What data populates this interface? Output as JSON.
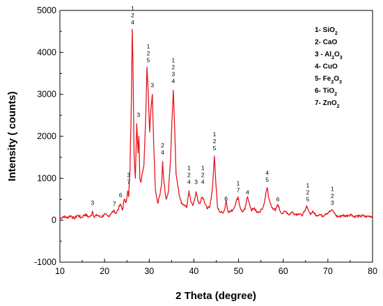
{
  "chart_data": {
    "type": "line",
    "title": "",
    "xlabel": "2 Theta (degree)",
    "ylabel": "Intensity ( counts)",
    "xlim": [
      10,
      80
    ],
    "ylim": [
      -1000,
      5000
    ],
    "xticks": [
      10,
      20,
      30,
      40,
      50,
      60,
      70,
      80
    ],
    "yticks": [
      -1000,
      0,
      1000,
      2000,
      3000,
      4000,
      5000
    ],
    "grid": false,
    "legend_position": "top-right",
    "line_color": "#e8141c",
    "legend": [
      {
        "num": "1-",
        "el": "SiO",
        "sub": "2",
        "rest": ""
      },
      {
        "num": "2-",
        "el": "CaO",
        "sub": "",
        "rest": ""
      },
      {
        "num": "3 -",
        "el": "Al",
        "sub": "2",
        "rest": "O",
        "sub2": "3"
      },
      {
        "num": "4-",
        "el": "CuO",
        "sub": "",
        "rest": ""
      },
      {
        "num": "5-",
        "el": "Fe",
        "sub": "2",
        "rest": "O",
        "sub2": "3"
      },
      {
        "num": "6-",
        "el": "TiO",
        "sub": "2",
        "rest": ""
      },
      {
        "num": "7-",
        "el": "ZnO",
        "sub": "2",
        "rest": ""
      }
    ],
    "peak_labels": [
      {
        "x": 17.3,
        "y": 300,
        "lines": [
          "3"
        ]
      },
      {
        "x": 22.2,
        "y": 280,
        "lines": [
          "7"
        ]
      },
      {
        "x": 23.6,
        "y": 480,
        "lines": [
          "6"
        ]
      },
      {
        "x": 25.4,
        "y": 800,
        "lines": [
          "3",
          "7"
        ]
      },
      {
        "x": 26.3,
        "y": 4600,
        "lines": [
          "1",
          "2",
          "4"
        ]
      },
      {
        "x": 27.6,
        "y": 2400,
        "lines": [
          "3"
        ]
      },
      {
        "x": 29.8,
        "y": 3700,
        "lines": [
          "1",
          "2",
          "5"
        ]
      },
      {
        "x": 30.7,
        "y": 3100,
        "lines": [
          "3"
        ]
      },
      {
        "x": 33.0,
        "y": 1500,
        "lines": [
          "2",
          "4"
        ]
      },
      {
        "x": 35.4,
        "y": 3200,
        "lines": [
          "1",
          "2",
          "3",
          "4"
        ]
      },
      {
        "x": 38.9,
        "y": 800,
        "lines": [
          "1",
          "2",
          "4"
        ]
      },
      {
        "x": 40.5,
        "y": 800,
        "lines": [
          "3"
        ]
      },
      {
        "x": 42.0,
        "y": 800,
        "lines": [
          "1",
          "2",
          "4"
        ]
      },
      {
        "x": 44.6,
        "y": 1600,
        "lines": [
          "1",
          "2",
          "5"
        ]
      },
      {
        "x": 47.2,
        "y": 400,
        "lines": [
          "6"
        ]
      },
      {
        "x": 49.9,
        "y": 600,
        "lines": [
          "1",
          "7"
        ]
      },
      {
        "x": 52.0,
        "y": 550,
        "lines": [
          "4"
        ]
      },
      {
        "x": 56.4,
        "y": 850,
        "lines": [
          "4",
          "5"
        ]
      },
      {
        "x": 58.8,
        "y": 380,
        "lines": [
          "6"
        ]
      },
      {
        "x": 65.5,
        "y": 380,
        "lines": [
          "1",
          "2",
          "5"
        ]
      },
      {
        "x": 71.0,
        "y": 300,
        "lines": [
          "1",
          "2",
          "3"
        ]
      }
    ],
    "series": [
      {
        "x": [
          10.0,
          10.8,
          11.6,
          12.4,
          13.2,
          14.0,
          14.8,
          15.6,
          16.4,
          17.0,
          17.3,
          17.6,
          18.4,
          19.2,
          20.0,
          20.8,
          21.6,
          22.2,
          22.6,
          23.0,
          23.6,
          24.0,
          24.4,
          24.8,
          25.2,
          25.4,
          25.7,
          26.0,
          26.2,
          26.35,
          26.6,
          26.9,
          27.2,
          27.5,
          27.7,
          27.9,
          28.1,
          28.4,
          28.8,
          29.2,
          29.5,
          29.8,
          30.1,
          30.4,
          30.7,
          31.0,
          31.4,
          31.9,
          32.4,
          32.8,
          33.0,
          33.3,
          33.8,
          34.3,
          34.8,
          35.1,
          35.4,
          35.7,
          36.0,
          36.3,
          36.7,
          37.2,
          37.8,
          38.4,
          38.9,
          39.3,
          39.8,
          40.2,
          40.5,
          40.9,
          41.4,
          41.8,
          42.1,
          42.6,
          43.1,
          43.6,
          44.1,
          44.4,
          44.6,
          44.9,
          45.3,
          45.8,
          46.4,
          46.9,
          47.2,
          47.6,
          48.2,
          48.8,
          49.4,
          49.9,
          50.3,
          50.8,
          51.4,
          52.0,
          52.4,
          52.9,
          53.5,
          54.1,
          54.7,
          55.3,
          55.8,
          56.1,
          56.4,
          56.7,
          57.1,
          57.6,
          58.2,
          58.8,
          59.3,
          59.9,
          60.6,
          61.3,
          62.0,
          62.7,
          63.4,
          64.1,
          64.8,
          65.3,
          65.6,
          66.0,
          66.7,
          67.4,
          68.1,
          68.8,
          69.5,
          70.2,
          70.7,
          71.0,
          71.3,
          71.8,
          72.5,
          73.2,
          73.9,
          74.6,
          75.3,
          75.8,
          76.4,
          77.1,
          77.8,
          78.5,
          79.2,
          80.0
        ],
        "values": [
          40,
          90,
          60,
          110,
          40,
          120,
          60,
          140,
          80,
          100,
          220,
          90,
          120,
          70,
          140,
          90,
          180,
          220,
          160,
          260,
          380,
          240,
          500,
          420,
          700,
          560,
          1200,
          2800,
          4550,
          3800,
          1600,
          1000,
          2300,
          1600,
          2000,
          1000,
          900,
          1100,
          1300,
          2400,
          3650,
          3000,
          2100,
          2700,
          3000,
          1800,
          700,
          400,
          600,
          900,
          1400,
          900,
          500,
          700,
          1500,
          2400,
          3100,
          2200,
          1100,
          900,
          600,
          400,
          350,
          300,
          700,
          450,
          350,
          500,
          680,
          450,
          400,
          550,
          520,
          380,
          280,
          350,
          700,
          1200,
          1530,
          900,
          300,
          200,
          180,
          250,
          480,
          220,
          200,
          260,
          420,
          560,
          330,
          200,
          250,
          560,
          420,
          220,
          300,
          180,
          200,
          260,
          420,
          650,
          780,
          560,
          400,
          300,
          220,
          380,
          220,
          160,
          220,
          130,
          200,
          140,
          160,
          110,
          200,
          340,
          260,
          150,
          200,
          120,
          140,
          100,
          160,
          190,
          220,
          230,
          200,
          110,
          80,
          120,
          100,
          120,
          140,
          80,
          100,
          90,
          110,
          80,
          100,
          90
        ]
      }
    ]
  }
}
